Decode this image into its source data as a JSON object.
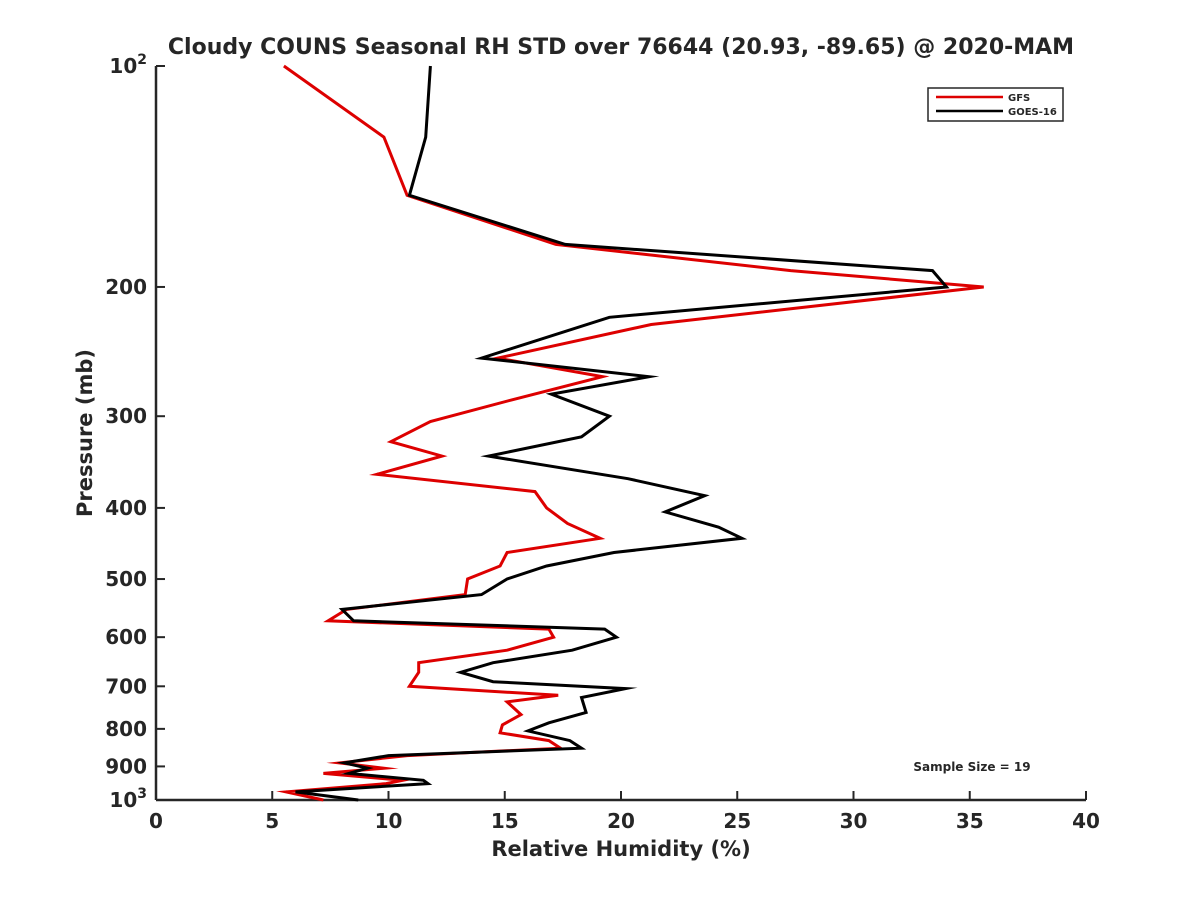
{
  "chart_data": {
    "type": "line",
    "title": "Cloudy COUNS Seasonal RH STD over 76644 (20.93, -89.65) @ 2020-MAM",
    "xlabel": "Relative Humidity (%)",
    "ylabel": "Pressure (mb)",
    "xlim": [
      0,
      40
    ],
    "ylim": [
      100,
      1000
    ],
    "yscale": "log",
    "y_reversed": true,
    "grid": false,
    "x_ticks": [
      0,
      5,
      10,
      15,
      20,
      25,
      30,
      35,
      40
    ],
    "x_tick_labels": [
      "0",
      "5",
      "10",
      "15",
      "20",
      "25",
      "30",
      "35",
      "40"
    ],
    "y_ticks": [
      100,
      200,
      300,
      400,
      500,
      600,
      700,
      800,
      900,
      1000
    ],
    "y_tick_labels": [
      {
        "base": "10",
        "exp": "2"
      },
      {
        "base": "200",
        "exp": ""
      },
      {
        "base": "300",
        "exp": ""
      },
      {
        "base": "400",
        "exp": ""
      },
      {
        "base": "500",
        "exp": ""
      },
      {
        "base": "600",
        "exp": ""
      },
      {
        "base": "700",
        "exp": ""
      },
      {
        "base": "800",
        "exp": ""
      },
      {
        "base": "900",
        "exp": ""
      },
      {
        "base": "10",
        "exp": "3"
      }
    ],
    "legend_position": "top-right",
    "annotation": "Sample Size = 19",
    "series": [
      {
        "name": "GFS",
        "color": "#dd0000",
        "points": [
          [
            5.5,
            100
          ],
          [
            9.8,
            125
          ],
          [
            10.8,
            150
          ],
          [
            17.2,
            175
          ],
          [
            27.3,
            190
          ],
          [
            35.6,
            200
          ],
          [
            21.3,
            225
          ],
          [
            14.7,
            250
          ],
          [
            19.2,
            265
          ],
          [
            15.3,
            285
          ],
          [
            11.8,
            305
          ],
          [
            10.1,
            325
          ],
          [
            12.3,
            340
          ],
          [
            9.5,
            360
          ],
          [
            16.3,
            380
          ],
          [
            16.8,
            400
          ],
          [
            17.7,
            420
          ],
          [
            19.1,
            440
          ],
          [
            15.1,
            460
          ],
          [
            14.8,
            480
          ],
          [
            13.4,
            500
          ],
          [
            13.3,
            525
          ],
          [
            8.2,
            550
          ],
          [
            7.4,
            570
          ],
          [
            16.9,
            585
          ],
          [
            17.1,
            600
          ],
          [
            15.1,
            625
          ],
          [
            11.3,
            650
          ],
          [
            11.3,
            670
          ],
          [
            10.9,
            700
          ],
          [
            17.3,
            720
          ],
          [
            15.1,
            735
          ],
          [
            15.7,
            765
          ],
          [
            14.9,
            790
          ],
          [
            14.8,
            810
          ],
          [
            16.9,
            830
          ],
          [
            17.4,
            850
          ],
          [
            10.8,
            870
          ],
          [
            7.9,
            890
          ],
          [
            9.8,
            905
          ],
          [
            7.2,
            920
          ],
          [
            10.6,
            940
          ],
          [
            9.9,
            950
          ],
          [
            5.6,
            975
          ],
          [
            7.2,
            1000
          ]
        ]
      },
      {
        "name": "GOES-16",
        "color": "#000000",
        "points": [
          [
            11.8,
            100
          ],
          [
            11.6,
            125
          ],
          [
            10.9,
            150
          ],
          [
            17.6,
            175
          ],
          [
            33.4,
            190
          ],
          [
            34.0,
            200
          ],
          [
            19.5,
            220
          ],
          [
            14.0,
            250
          ],
          [
            21.2,
            265
          ],
          [
            17.0,
            280
          ],
          [
            19.5,
            300
          ],
          [
            18.3,
            320
          ],
          [
            14.3,
            340
          ],
          [
            20.3,
            365
          ],
          [
            23.6,
            385
          ],
          [
            21.9,
            405
          ],
          [
            24.2,
            425
          ],
          [
            25.2,
            440
          ],
          [
            19.7,
            460
          ],
          [
            16.8,
            480
          ],
          [
            15.1,
            500
          ],
          [
            14.0,
            525
          ],
          [
            8.0,
            550
          ],
          [
            8.5,
            570
          ],
          [
            19.3,
            585
          ],
          [
            19.8,
            600
          ],
          [
            17.9,
            625
          ],
          [
            14.5,
            650
          ],
          [
            13.1,
            670
          ],
          [
            14.5,
            690
          ],
          [
            20.2,
            705
          ],
          [
            18.3,
            725
          ],
          [
            18.5,
            760
          ],
          [
            16.9,
            785
          ],
          [
            16.0,
            805
          ],
          [
            17.8,
            830
          ],
          [
            18.3,
            850
          ],
          [
            10.0,
            870
          ],
          [
            8.1,
            890
          ],
          [
            9.1,
            905
          ],
          [
            8.3,
            920
          ],
          [
            11.5,
            940
          ],
          [
            11.7,
            950
          ],
          [
            6.0,
            975
          ],
          [
            8.7,
            1000
          ]
        ]
      }
    ]
  }
}
